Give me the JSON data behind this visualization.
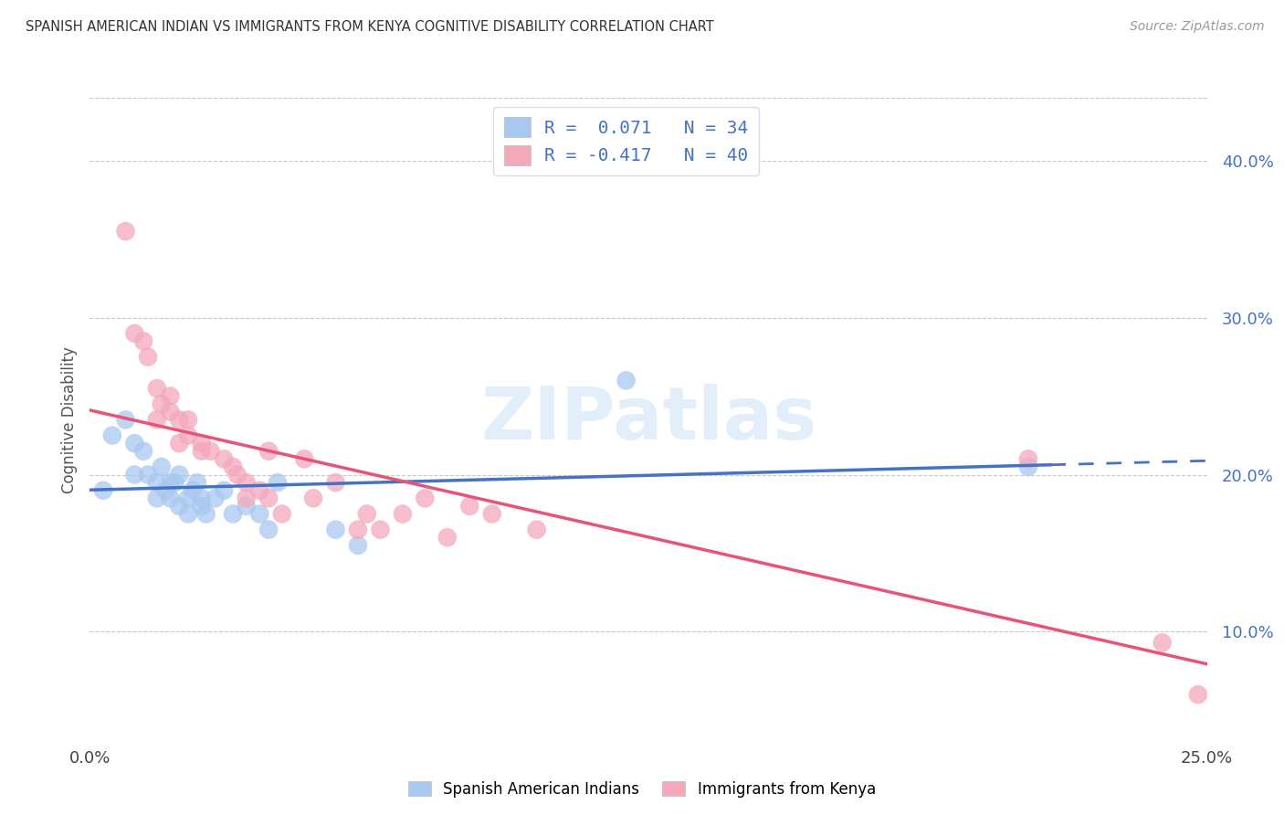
{
  "title": "SPANISH AMERICAN INDIAN VS IMMIGRANTS FROM KENYA COGNITIVE DISABILITY CORRELATION CHART",
  "source": "Source: ZipAtlas.com",
  "ylabel": "Cognitive Disability",
  "xlim": [
    0.0,
    0.25
  ],
  "ylim": [
    0.03,
    0.44
  ],
  "yticks": [
    0.1,
    0.2,
    0.3,
    0.4
  ],
  "ytick_labels": [
    "10.0%",
    "20.0%",
    "30.0%",
    "40.0%"
  ],
  "xticks": [
    0.0,
    0.05,
    0.1,
    0.15,
    0.2,
    0.25
  ],
  "xtick_labels": [
    "0.0%",
    "",
    "",
    "",
    "",
    "25.0%"
  ],
  "blue_R": 0.071,
  "blue_N": 34,
  "pink_R": -0.417,
  "pink_N": 40,
  "blue_color": "#A8C8F0",
  "pink_color": "#F4A8BC",
  "blue_line_color": "#4472C4",
  "pink_line_color": "#E8537A",
  "watermark": "ZIPatlas",
  "blue_points_x": [
    0.003,
    0.005,
    0.008,
    0.01,
    0.01,
    0.012,
    0.013,
    0.015,
    0.015,
    0.016,
    0.017,
    0.018,
    0.018,
    0.019,
    0.02,
    0.02,
    0.022,
    0.022,
    0.023,
    0.024,
    0.025,
    0.025,
    0.026,
    0.028,
    0.03,
    0.032,
    0.035,
    0.038,
    0.04,
    0.042,
    0.055,
    0.06,
    0.12,
    0.21
  ],
  "blue_points_y": [
    0.19,
    0.225,
    0.235,
    0.22,
    0.2,
    0.215,
    0.2,
    0.195,
    0.185,
    0.205,
    0.19,
    0.195,
    0.185,
    0.195,
    0.18,
    0.2,
    0.185,
    0.175,
    0.19,
    0.195,
    0.18,
    0.185,
    0.175,
    0.185,
    0.19,
    0.175,
    0.18,
    0.175,
    0.165,
    0.195,
    0.165,
    0.155,
    0.26,
    0.205
  ],
  "pink_points_x": [
    0.008,
    0.01,
    0.012,
    0.013,
    0.015,
    0.015,
    0.016,
    0.018,
    0.018,
    0.02,
    0.02,
    0.022,
    0.022,
    0.025,
    0.025,
    0.027,
    0.03,
    0.032,
    0.033,
    0.035,
    0.035,
    0.038,
    0.04,
    0.04,
    0.043,
    0.048,
    0.05,
    0.055,
    0.06,
    0.062,
    0.065,
    0.07,
    0.075,
    0.08,
    0.085,
    0.09,
    0.1,
    0.21,
    0.24,
    0.248
  ],
  "pink_points_y": [
    0.355,
    0.29,
    0.285,
    0.275,
    0.255,
    0.235,
    0.245,
    0.25,
    0.24,
    0.235,
    0.22,
    0.225,
    0.235,
    0.215,
    0.22,
    0.215,
    0.21,
    0.205,
    0.2,
    0.195,
    0.185,
    0.19,
    0.185,
    0.215,
    0.175,
    0.21,
    0.185,
    0.195,
    0.165,
    0.175,
    0.165,
    0.175,
    0.185,
    0.16,
    0.18,
    0.175,
    0.165,
    0.21,
    0.093,
    0.06
  ]
}
